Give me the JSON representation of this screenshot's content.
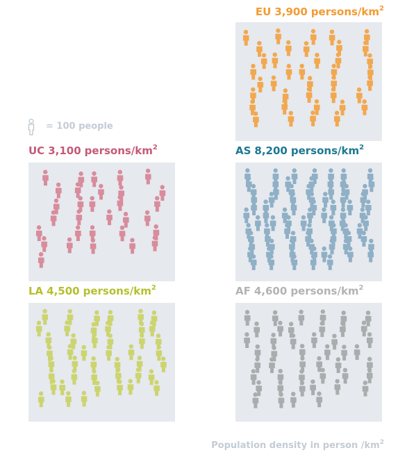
{
  "chart_data": {
    "type": "pictogram",
    "categories": [
      "EU",
      "UC",
      "AS",
      "LA",
      "AF"
    ],
    "values": [
      3900,
      3100,
      8200,
      4500,
      4600
    ],
    "value_labels": [
      "3,900",
      "3,100",
      "8,200",
      "4,500",
      "4,600"
    ],
    "colors": [
      "#f29b32",
      "#c45a78",
      "#1e7891",
      "#b6bf2c",
      "#b3b3b3"
    ],
    "icon_colors": [
      "#f2a850",
      "#d88c9c",
      "#8fb0c6",
      "#ccd470",
      "#a8adad"
    ],
    "unit": "persons/km",
    "unit_superscript": "2",
    "icon_value": 100,
    "icon_label": "= 100 people",
    "footnote": "Population density in person /km",
    "footnote_superscript": "2"
  }
}
